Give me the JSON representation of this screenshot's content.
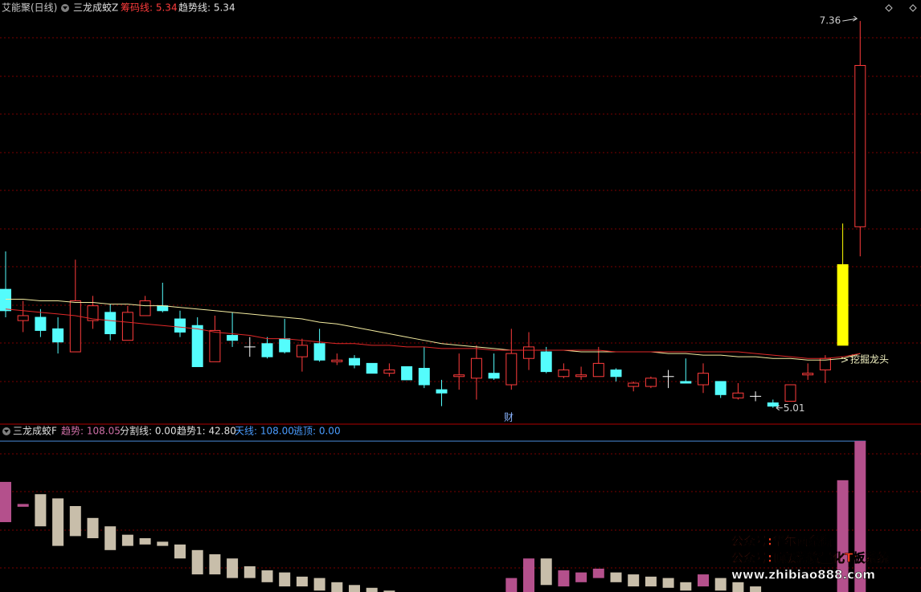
{
  "chart_data": [
    {
      "type": "candlestick",
      "title": "艾能聚(日线)",
      "indicator": "三龙成蛟Z",
      "readouts": [
        {
          "text": "筹码线: 5.34",
          "color": "#ff3c3c"
        },
        {
          "text": "趋势线: 5.34",
          "color": "#e0e0e0"
        }
      ],
      "ylim": [
        4.95,
        7.39
      ],
      "up_color": "#ff3c3c",
      "down_color": "#54fcfc",
      "flat_color": "#ffffff",
      "highlight": {
        "index": 48,
        "color": "#ffff00"
      },
      "open": [
        5.73,
        5.54,
        5.56,
        5.49,
        5.35,
        5.54,
        5.59,
        5.42,
        5.57,
        5.63,
        5.55,
        5.51,
        5.29,
        5.45,
        5.38,
        5.4,
        5.43,
        5.32,
        5.4,
        5.29,
        5.31,
        5.28,
        5.22,
        5.26,
        5.25,
        5.12,
        5.2,
        5.19,
        5.22,
        5.15,
        5.31,
        5.35,
        5.2,
        5.2,
        5.2,
        5.24,
        5.14,
        5.14,
        5.2,
        5.17,
        5.15,
        5.17,
        5.07,
        5.08,
        5.04,
        5.05,
        5.21,
        5.24,
        5.39,
        6.11
      ],
      "high": [
        5.96,
        5.66,
        5.61,
        5.56,
        5.91,
        5.69,
        5.64,
        5.63,
        5.69,
        5.77,
        5.6,
        5.56,
        5.57,
        5.59,
        5.44,
        5.44,
        5.55,
        5.43,
        5.49,
        5.34,
        5.33,
        5.28,
        5.28,
        5.26,
        5.38,
        5.18,
        5.34,
        5.39,
        5.34,
        5.49,
        5.47,
        5.38,
        5.28,
        5.26,
        5.38,
        5.25,
        5.17,
        5.2,
        5.24,
        5.31,
        5.28,
        5.17,
        5.16,
        5.11,
        5.06,
        5.15,
        5.28,
        5.33,
        6.13,
        7.36
      ],
      "low": [
        5.56,
        5.47,
        5.44,
        5.34,
        5.35,
        5.49,
        5.42,
        5.42,
        5.57,
        5.59,
        5.44,
        5.26,
        5.29,
        5.38,
        5.32,
        5.31,
        5.34,
        5.23,
        5.29,
        5.27,
        5.25,
        5.22,
        5.2,
        5.18,
        5.13,
        5.02,
        5.12,
        5.06,
        5.18,
        5.12,
        5.24,
        5.22,
        5.19,
        5.18,
        5.2,
        5.17,
        5.11,
        5.13,
        5.13,
        5.16,
        5.1,
        5.07,
        5.06,
        5.05,
        5.01,
        5.05,
        5.18,
        5.16,
        5.39,
        5.93
      ],
      "close": [
        5.6,
        5.57,
        5.48,
        5.41,
        5.66,
        5.63,
        5.46,
        5.59,
        5.66,
        5.6,
        5.47,
        5.26,
        5.48,
        5.42,
        5.38,
        5.32,
        5.35,
        5.39,
        5.3,
        5.3,
        5.27,
        5.22,
        5.24,
        5.18,
        5.15,
        5.1,
        5.21,
        5.31,
        5.19,
        5.34,
        5.38,
        5.23,
        5.24,
        5.21,
        5.28,
        5.2,
        5.16,
        5.19,
        5.2,
        5.16,
        5.22,
        5.09,
        5.1,
        5.08,
        5.02,
        5.15,
        5.22,
        5.31,
        5.88,
        7.09
      ],
      "lines": [
        {
          "color": "#f4eca0",
          "values": [
            5.67,
            5.67,
            5.66,
            5.66,
            5.65,
            5.65,
            5.64,
            5.64,
            5.63,
            5.63,
            5.62,
            5.61,
            5.6,
            5.59,
            5.58,
            5.57,
            5.56,
            5.55,
            5.53,
            5.52,
            5.5,
            5.48,
            5.46,
            5.44,
            5.42,
            5.4,
            5.39,
            5.38,
            5.37,
            5.36,
            5.36,
            5.36,
            5.36,
            5.35,
            5.35,
            5.35,
            5.35,
            5.35,
            5.34,
            5.34,
            5.33,
            5.33,
            5.32,
            5.32,
            5.31,
            5.31,
            5.3,
            5.3,
            5.31,
            5.34
          ]
        },
        {
          "color": "#e02828",
          "values": [
            5.61,
            5.6,
            5.59,
            5.58,
            5.57,
            5.55,
            5.54,
            5.53,
            5.52,
            5.51,
            5.5,
            5.49,
            5.47,
            5.46,
            5.45,
            5.43,
            5.43,
            5.42,
            5.41,
            5.4,
            5.4,
            5.39,
            5.39,
            5.38,
            5.38,
            5.37,
            5.37,
            5.37,
            5.36,
            5.36,
            5.36,
            5.36,
            5.36,
            5.36,
            5.36,
            5.35,
            5.35,
            5.35,
            5.35,
            5.35,
            5.35,
            5.35,
            5.35,
            5.34,
            5.33,
            5.32,
            5.31,
            5.31,
            5.32,
            5.34
          ]
        }
      ],
      "annotations": [
        "挖掘龙头",
        "财"
      ]
    },
    {
      "type": "floating_bar",
      "title": "三龙成蛟F",
      "readouts": [
        {
          "text": "趋势: 108.05",
          "color": "#d070a8"
        },
        {
          "text": "分割线: 0.00",
          "color": "#e0e0e0"
        },
        {
          "text": "趋势1: 42.80",
          "color": "#e0e0e0"
        },
        {
          "text": "天线: 108.00",
          "color": "#4a9cff"
        },
        {
          "text": "逃顶: 0.00",
          "color": "#4a9cff"
        }
      ],
      "ylim": [
        0,
        119
      ],
      "up_color": "#b4508c",
      "down_color": "#c8beaa",
      "sky_line": {
        "value": 108,
        "color": "#4a8ad8"
      },
      "start": [
        50,
        61,
        70,
        67,
        61.5,
        53,
        47,
        41,
        38.5,
        36,
        34,
        30,
        27,
        24,
        18.4,
        15.5,
        14,
        11,
        10,
        7,
        5,
        3,
        1,
        null,
        null,
        null,
        null,
        null,
        null,
        0,
        0,
        24,
        4,
        7,
        10,
        14,
        12.6,
        11,
        10,
        7,
        4,
        10,
        7,
        4,
        null,
        null,
        null,
        null,
        0,
        0
      ],
      "end": [
        78.8,
        63,
        47,
        33,
        40,
        38.5,
        30,
        33,
        34,
        33,
        24,
        12.6,
        12.6,
        10,
        10,
        7,
        4,
        4,
        1,
        0,
        0,
        0,
        0,
        null,
        null,
        null,
        null,
        null,
        null,
        10,
        24,
        5,
        15.5,
        14,
        16.7,
        7,
        4,
        4,
        3,
        1,
        12.6,
        1,
        0,
        0,
        null,
        null,
        null,
        null,
        80,
        108.05
      ],
      "watermark": [
        "公众号:华尔两条街",
        "公众号:顶级游资量化T板系统",
        "www.zhibiao888.com"
      ]
    }
  ]
}
